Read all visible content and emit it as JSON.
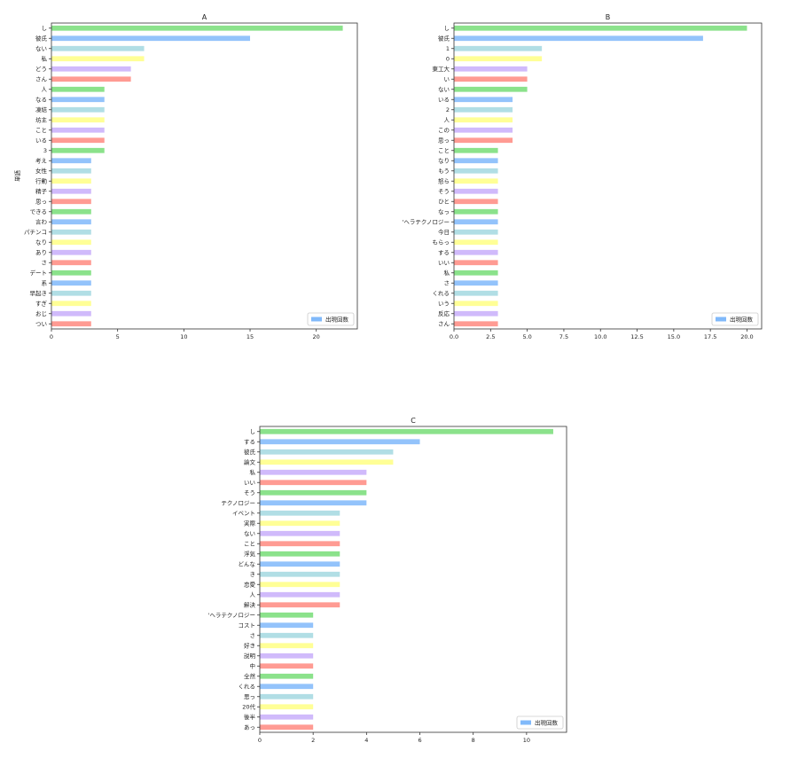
{
  "palette": [
    "#77DD77",
    "#80B9FA",
    "#A3D8E0",
    "#FFFF84",
    "#C8AEFA",
    "#FF8A80"
  ],
  "chart_data": [
    {
      "type": "bar",
      "orientation": "horizontal",
      "title": "A",
      "xlabel": "",
      "ylabel": "単語",
      "xlim": [
        0,
        23.1
      ],
      "xticks": [
        0,
        5,
        10,
        15,
        20
      ],
      "legend": "lower-right",
      "categories": [
        "し",
        "彼氏",
        "ない",
        "私",
        "どう",
        "さん",
        "人",
        "なる",
        "凍結",
        "坊主",
        "こと",
        "いる",
        "3",
        "考え",
        "女性",
        "行動",
        "精子",
        "思っ",
        "できる",
        "言わ",
        "パチンコ",
        "なり",
        "あり",
        "さ",
        "デート",
        "系",
        "早起き",
        "すぎ",
        "おじ",
        "つい"
      ],
      "series": [
        {
          "name": "出現回数",
          "values": [
            22,
            15,
            7,
            7,
            6,
            6,
            4,
            4,
            4,
            4,
            4,
            4,
            4,
            3,
            3,
            3,
            3,
            3,
            3,
            3,
            3,
            3,
            3,
            3,
            3,
            3,
            3,
            3,
            3,
            3
          ]
        }
      ]
    },
    {
      "type": "bar",
      "orientation": "horizontal",
      "title": "B",
      "xlabel": "",
      "ylabel": "",
      "xlim": [
        0,
        21
      ],
      "xticks": [
        0.0,
        2.5,
        5.0,
        7.5,
        10.0,
        12.5,
        15.0,
        17.5,
        20.0
      ],
      "legend": "lower-right",
      "categories": [
        "し",
        "彼氏",
        "1",
        "0",
        "東工大",
        "い",
        "ない",
        "いる",
        "2",
        "人",
        "この",
        "思っ",
        "こと",
        "なり",
        "もう",
        "怒ら",
        "そう",
        "ひと",
        "なっ",
        "'ヘラテクノロジー",
        "今日",
        "もらっ",
        "する",
        "いい",
        "私",
        "さ",
        "くれる",
        "いう",
        "反応",
        "さん"
      ],
      "series": [
        {
          "name": "出現回数",
          "values": [
            20,
            17,
            6,
            6,
            5,
            5,
            5,
            4,
            4,
            4,
            4,
            4,
            3,
            3,
            3,
            3,
            3,
            3,
            3,
            3,
            3,
            3,
            3,
            3,
            3,
            3,
            3,
            3,
            3,
            3
          ]
        }
      ]
    },
    {
      "type": "bar",
      "orientation": "horizontal",
      "title": "C",
      "xlabel": "",
      "ylabel": "",
      "xlim": [
        0,
        11.5
      ],
      "xticks": [
        0,
        2,
        4,
        6,
        8,
        10
      ],
      "legend": "lower-right",
      "categories": [
        "し",
        "する",
        "彼氏",
        "論文",
        "私",
        "いい",
        "そう",
        "テクノロジー",
        "イベント",
        "実際",
        "ない",
        "こと",
        "浮気",
        "どんな",
        "き",
        "恋愛",
        "人",
        "解決",
        "'ヘラテクノロジー",
        "コスト",
        "さ",
        "好き",
        "説明",
        "中",
        "全然",
        "くれる",
        "思っ",
        "20代",
        "後半",
        "あっ"
      ],
      "series": [
        {
          "name": "出現回数",
          "values": [
            11,
            6,
            5,
            5,
            4,
            4,
            4,
            4,
            3,
            3,
            3,
            3,
            3,
            3,
            3,
            3,
            3,
            3,
            2,
            2,
            2,
            2,
            2,
            2,
            2,
            2,
            2,
            2,
            2,
            2
          ]
        }
      ]
    }
  ]
}
